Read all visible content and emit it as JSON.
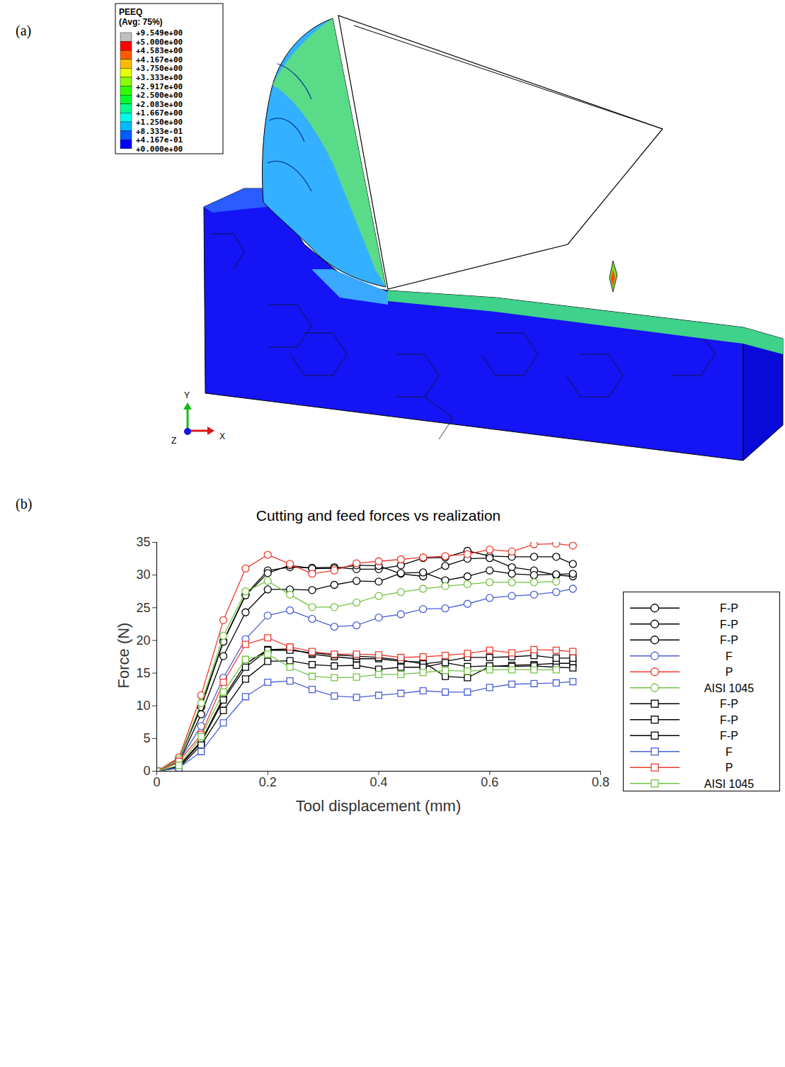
{
  "panel_a": {
    "label": "(a)",
    "colorbar": {
      "title": "PEEQ",
      "subtitle": "(Avg: 75%)",
      "ticks": [
        {
          "value": 9.549,
          "label": "+9.549e+00"
        },
        {
          "value": 5.0,
          "label": "+5.000e+00"
        },
        {
          "value": 4.583,
          "label": "+4.583e+00"
        },
        {
          "value": 4.167,
          "label": "+4.167e+00"
        },
        {
          "value": 3.75,
          "label": "+3.750e+00"
        },
        {
          "value": 3.333,
          "label": "+3.333e+00"
        },
        {
          "value": 2.917,
          "label": "+2.917e+00"
        },
        {
          "value": 2.5,
          "label": "+2.500e+00"
        },
        {
          "value": 2.083,
          "label": "+2.083e+00"
        },
        {
          "value": 1.667,
          "label": "+1.667e+00"
        },
        {
          "value": 1.25,
          "label": "+1.250e+00"
        },
        {
          "value": 0.8333,
          "label": "+8.333e-01"
        },
        {
          "value": 0.4167,
          "label": "+4.167e-01"
        },
        {
          "value": 0.0,
          "label": "+0.000e+00"
        }
      ],
      "colors": [
        "#c0c0c0",
        "#ff0000",
        "#ff5c00",
        "#ffb900",
        "#e6ff00",
        "#89ff00",
        "#2dff00",
        "#00ff2e",
        "#00ff8b",
        "#00ffe8",
        "#00b9ff",
        "#005cff",
        "#0000ff"
      ]
    },
    "triad": {
      "y": "Y",
      "z": "Z",
      "x": "X"
    }
  },
  "chart_data": {
    "type": "line",
    "panel": "(b)",
    "title": "Cutting and feed forces vs realization",
    "x_label": "Tool displacement (mm)",
    "y_label": "Force (N)",
    "x": [
      0,
      0.04,
      0.08,
      0.12,
      0.16,
      0.2,
      0.24,
      0.28,
      0.32,
      0.36,
      0.4,
      0.44,
      0.48,
      0.52,
      0.56,
      0.6,
      0.64,
      0.68,
      0.72,
      0.75
    ],
    "xlim": [
      0,
      0.8
    ],
    "xticks": [
      0,
      0.2,
      0.4,
      0.6,
      0.8
    ],
    "ylim": [
      0,
      35
    ],
    "yticks": [
      0,
      5,
      10,
      15,
      20,
      25,
      30,
      35
    ],
    "grid": false,
    "legend": "right",
    "series": [
      {
        "name": "F-P",
        "color": "#000000",
        "marker": "circle",
        "values": [
          0,
          1.9,
          10.0,
          19.9,
          27.0,
          30.7,
          31.2,
          31.1,
          31.2,
          30.9,
          30.9,
          31.5,
          32.6,
          32.7,
          33.7,
          32.9,
          32.8,
          32.8,
          32.8,
          31.7
        ]
      },
      {
        "name": "F-P",
        "color": "#000000",
        "marker": "circle",
        "values": [
          0,
          1.8,
          9.8,
          19.8,
          26.9,
          30.3,
          31.5,
          31.0,
          31.0,
          31.5,
          31.4,
          30.2,
          29.8,
          31.4,
          32.5,
          32.6,
          31.2,
          30.7,
          30.0,
          29.8
        ]
      },
      {
        "name": "F-P",
        "color": "#000000",
        "marker": "circle",
        "values": [
          0,
          1.4,
          8.7,
          17.6,
          24.3,
          27.8,
          27.8,
          27.7,
          28.5,
          29.1,
          29.0,
          30.3,
          30.4,
          29.2,
          29.8,
          30.7,
          30.2,
          30.0,
          30.1,
          30.2
        ]
      },
      {
        "name": "F",
        "color": "#4a5fd6",
        "marker": "circle",
        "values": [
          0,
          1.5,
          6.9,
          14.3,
          20.2,
          23.8,
          24.6,
          23.3,
          22.1,
          22.3,
          23.5,
          24.0,
          24.8,
          24.9,
          25.6,
          26.5,
          26.8,
          27.0,
          27.4,
          27.9
        ]
      },
      {
        "name": "P",
        "color": "#ee3b2e",
        "marker": "circle",
        "values": [
          0,
          2.1,
          11.6,
          23.1,
          31.0,
          33.1,
          31.7,
          30.2,
          30.7,
          31.8,
          32.1,
          32.4,
          32.7,
          32.9,
          33.2,
          33.9,
          33.6,
          34.7,
          34.8,
          34.5
        ]
      },
      {
        "name": "AISI 1045",
        "color": "#72c342",
        "marker": "circle",
        "values": [
          0,
          1.8,
          10.4,
          20.7,
          27.5,
          29.1,
          27.0,
          25.1,
          25.1,
          25.8,
          26.8,
          27.4,
          27.9,
          28.3,
          28.6,
          28.9,
          28.9,
          28.9,
          29.0,
          null
        ]
      },
      {
        "name": "F-P",
        "color": "#000000",
        "marker": "square",
        "values": [
          0,
          0.8,
          4.6,
          11.2,
          16.4,
          18.6,
          18.7,
          17.9,
          17.5,
          17.2,
          17.2,
          16.8,
          16.7,
          14.5,
          14.3,
          16.0,
          16.2,
          16.3,
          16.5,
          16.5
        ]
      },
      {
        "name": "F-P",
        "color": "#000000",
        "marker": "square",
        "values": [
          0,
          0.7,
          4.4,
          10.9,
          15.9,
          18.5,
          18.5,
          18.1,
          17.8,
          17.6,
          17.4,
          17.0,
          16.4,
          16.8,
          17.4,
          17.4,
          17.5,
          17.7,
          17.3,
          17.3
        ]
      },
      {
        "name": "F-P",
        "color": "#000000",
        "marker": "square",
        "values": [
          0,
          0.5,
          4.0,
          9.3,
          14.1,
          16.8,
          16.9,
          16.3,
          16.1,
          16.2,
          15.6,
          15.9,
          15.9,
          16.6,
          16.0,
          16.1,
          16.0,
          16.1,
          15.9,
          15.8
        ]
      },
      {
        "name": "F",
        "color": "#4a5fd6",
        "marker": "square",
        "values": [
          0,
          0.5,
          3.0,
          7.4,
          11.4,
          13.6,
          13.8,
          12.5,
          11.5,
          11.3,
          11.6,
          11.9,
          12.3,
          12.1,
          12.1,
          12.8,
          13.3,
          13.4,
          13.5,
          13.7
        ]
      },
      {
        "name": "P",
        "color": "#ee3b2e",
        "marker": "square",
        "values": [
          0,
          1.5,
          5.6,
          13.6,
          19.4,
          20.4,
          19.0,
          18.3,
          17.9,
          17.9,
          17.8,
          17.4,
          17.5,
          17.7,
          18.0,
          18.5,
          18.1,
          18.6,
          18.5,
          18.3
        ]
      },
      {
        "name": "AISI 1045",
        "color": "#72c342",
        "marker": "square",
        "values": [
          0,
          0.9,
          5.3,
          12.1,
          17.1,
          17.9,
          15.9,
          14.5,
          14.3,
          14.4,
          14.8,
          14.8,
          15.1,
          15.4,
          15.3,
          15.5,
          15.5,
          15.5,
          15.5,
          null
        ]
      }
    ]
  }
}
